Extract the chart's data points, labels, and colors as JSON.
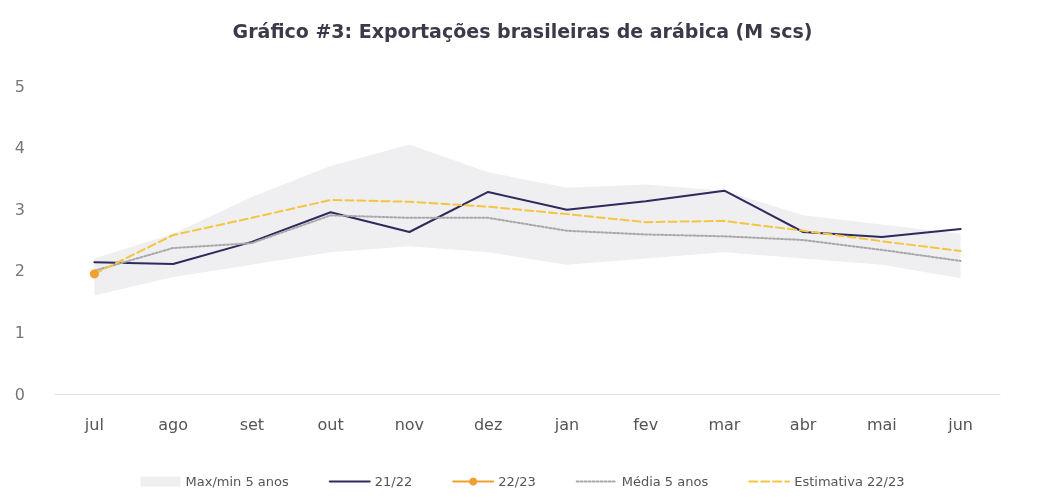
{
  "chart_data": {
    "type": "line",
    "title": "Gráfico #3: Exportações brasileiras de arábica (M scs)",
    "categories": [
      "jul",
      "ago",
      "set",
      "out",
      "nov",
      "dez",
      "jan",
      "fev",
      "mar",
      "abr",
      "mai",
      "jun"
    ],
    "ylim": [
      0,
      5
    ],
    "yticks": [
      0,
      1,
      2,
      3,
      4,
      5
    ],
    "grid": false,
    "legend": "bottom",
    "series": [
      {
        "name": "Max/min 5 anos",
        "type": "area",
        "color": "#efeff1",
        "values": [
          null,
          null,
          null,
          null,
          null,
          null,
          null,
          null,
          null,
          null,
          null,
          null
        ],
        "lower": [
          1.6,
          1.9,
          2.1,
          2.3,
          2.4,
          2.3,
          2.1,
          2.2,
          2.3,
          2.2,
          2.1,
          1.88
        ],
        "upper": [
          2.2,
          2.6,
          3.2,
          3.7,
          4.05,
          3.6,
          3.35,
          3.4,
          3.3,
          2.9,
          2.75,
          2.6
        ]
      },
      {
        "name": "21/22",
        "color": "#2e2a5e",
        "marker": "none",
        "line_style": "solid",
        "values": [
          2.14,
          2.11,
          2.47,
          2.95,
          2.63,
          3.28,
          2.99,
          3.13,
          3.3,
          2.63,
          2.55,
          2.68
        ]
      },
      {
        "name": "22/23",
        "color": "#f0a030",
        "marker": "circle",
        "line_style": "solid",
        "values": [
          1.95,
          null,
          null,
          null,
          null,
          null,
          null,
          null,
          null,
          null,
          null,
          null
        ]
      },
      {
        "name": "Média 5 anos",
        "color": "#a8a8a8",
        "marker": "none",
        "line_style": "dotted",
        "values": [
          2.0,
          2.37,
          2.45,
          2.9,
          2.86,
          2.86,
          2.65,
          2.59,
          2.56,
          2.5,
          2.34,
          2.16
        ]
      },
      {
        "name": "Estimativa 22/23",
        "color": "#f5c542",
        "marker": "none",
        "line_style": "dashed",
        "values": [
          1.95,
          2.58,
          2.86,
          3.15,
          3.12,
          3.04,
          2.92,
          2.79,
          2.81,
          2.65,
          2.48,
          2.32
        ]
      }
    ]
  }
}
